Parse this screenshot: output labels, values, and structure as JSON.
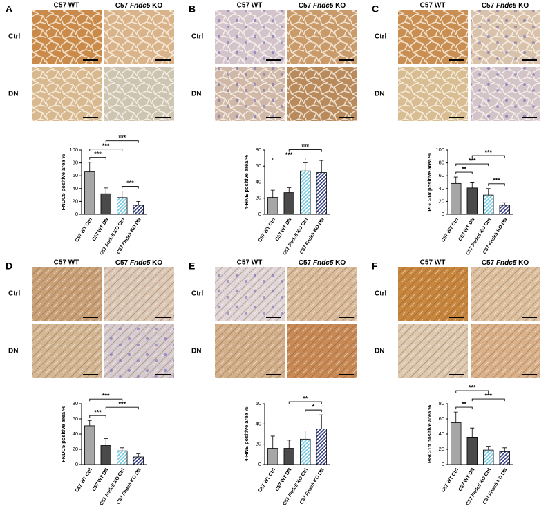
{
  "panels": [
    {
      "letter": "A",
      "col_headers": [
        "C57 WT",
        "C57 Fndc5 KO"
      ],
      "row_labels": [
        "Ctrl",
        "DN"
      ]
    },
    {
      "letter": "B",
      "col_headers": [
        "C57 WT",
        "C57 Fndc5 KO"
      ],
      "row_labels": [
        "Ctrl",
        "DN"
      ]
    },
    {
      "letter": "C",
      "col_headers": [
        "C57 WT",
        "C57 Fndc5 KO"
      ],
      "row_labels": [
        "Ctrl",
        "DN"
      ]
    },
    {
      "letter": "D",
      "col_headers": [
        "C57 WT",
        "C57 Fndc5 KO"
      ],
      "row_labels": [
        "Ctrl",
        "DN"
      ]
    },
    {
      "letter": "E",
      "col_headers": [
        "C57 WT",
        "C57 Fndc5 KO"
      ],
      "row_labels": [
        "Ctrl",
        "DN"
      ]
    },
    {
      "letter": "F",
      "col_headers": [
        "C57 WT",
        "C57 Fndc5 KO"
      ],
      "row_labels": [
        "Ctrl",
        "DN"
      ]
    }
  ],
  "chart_data": [
    {
      "type": "bar",
      "y_label": "FNDC5 positive area %",
      "categories": [
        "C57 WT Ctrl",
        "C57 WT DN",
        "C57 Fndc5 KO Ctrl",
        "C57 Fndc5 KO DN"
      ],
      "values": [
        66,
        32,
        26,
        14
      ],
      "errors": [
        15,
        9,
        10,
        6
      ],
      "colors": [
        "#a6a6a6",
        "#4a4a4a",
        "#6cc7e0",
        "#2b3580"
      ],
      "hatch": [
        false,
        false,
        true,
        true
      ],
      "ylim": [
        0,
        100
      ],
      "yticks": [
        0,
        20,
        40,
        60,
        80,
        100
      ],
      "grid": false,
      "significance": [
        {
          "pair": [
            0,
            1
          ],
          "label": "***"
        },
        {
          "pair": [
            2,
            3
          ],
          "label": "***"
        },
        {
          "pair": [
            0,
            2
          ],
          "label": "***"
        },
        {
          "pair": [
            1,
            3
          ],
          "label": "***"
        }
      ]
    },
    {
      "type": "bar",
      "y_label": "4-HNE positive area %",
      "categories": [
        "C57 WT Ctrl",
        "C57 WT DN",
        "C57 Fndc5 KO Ctrl",
        "C57 Fndc5 KO DN"
      ],
      "values": [
        21,
        27,
        54,
        52
      ],
      "errors": [
        9,
        6,
        10,
        15
      ],
      "colors": [
        "#a6a6a6",
        "#4a4a4a",
        "#6cc7e0",
        "#2b3580"
      ],
      "hatch": [
        false,
        false,
        true,
        true
      ],
      "ylim": [
        0,
        80
      ],
      "yticks": [
        0,
        20,
        40,
        60,
        80
      ],
      "grid": false,
      "significance": [
        {
          "pair": [
            0,
            2
          ],
          "label": "***"
        },
        {
          "pair": [
            1,
            3
          ],
          "label": "***"
        }
      ]
    },
    {
      "type": "bar",
      "y_label": "PGC-1α positive area %",
      "categories": [
        "C57 WT Ctrl",
        "C57 WT DN",
        "C57 Fndc5 KO Ctrl",
        "C57 Fndc5 KO DN"
      ],
      "values": [
        48,
        41,
        30,
        14
      ],
      "errors": [
        10,
        8,
        10,
        4
      ],
      "colors": [
        "#a6a6a6",
        "#4a4a4a",
        "#6cc7e0",
        "#2b3580"
      ],
      "hatch": [
        false,
        false,
        true,
        true
      ],
      "ylim": [
        0,
        100
      ],
      "yticks": [
        0,
        20,
        40,
        60,
        80,
        100
      ],
      "grid": false,
      "significance": [
        {
          "pair": [
            0,
            1
          ],
          "label": "**"
        },
        {
          "pair": [
            2,
            3
          ],
          "label": "***"
        },
        {
          "pair": [
            0,
            2
          ],
          "label": "***"
        },
        {
          "pair": [
            1,
            3
          ],
          "label": "***"
        }
      ]
    },
    {
      "type": "bar",
      "y_label": "FNDC5 positive area %",
      "categories": [
        "C57 WT Ctrl",
        "C57 WT DN",
        "C57 Fndc5 KO Ctrl",
        "C57 Fndc5 KO DN"
      ],
      "values": [
        51,
        25,
        18,
        10
      ],
      "errors": [
        7,
        9,
        4,
        4
      ],
      "colors": [
        "#a6a6a6",
        "#4a4a4a",
        "#6cc7e0",
        "#2b3580"
      ],
      "hatch": [
        false,
        false,
        true,
        true
      ],
      "ylim": [
        0,
        80
      ],
      "yticks": [
        0,
        20,
        40,
        60,
        80
      ],
      "grid": false,
      "significance": [
        {
          "pair": [
            0,
            1
          ],
          "label": "***"
        },
        {
          "pair": [
            1,
            3
          ],
          "label": "***"
        },
        {
          "pair": [
            0,
            2
          ],
          "label": "***"
        }
      ]
    },
    {
      "type": "bar",
      "y_label": "4-HNE positive area %",
      "categories": [
        "C57 WT Ctrl",
        "C57 WT DN",
        "C57 Fndc5 KO Ctrl",
        "C57 Fndc5 KO DN"
      ],
      "values": [
        16,
        16,
        25,
        35
      ],
      "errors": [
        12,
        8,
        8,
        14
      ],
      "colors": [
        "#a6a6a6",
        "#4a4a4a",
        "#6cc7e0",
        "#2b3580"
      ],
      "hatch": [
        false,
        false,
        true,
        true
      ],
      "ylim": [
        0,
        60
      ],
      "yticks": [
        0,
        20,
        40,
        60
      ],
      "grid": false,
      "significance": [
        {
          "pair": [
            2,
            3
          ],
          "label": "*"
        },
        {
          "pair": [
            1,
            3
          ],
          "label": "**"
        }
      ]
    },
    {
      "type": "bar",
      "y_label": "PGC-1α positive area %",
      "categories": [
        "C57 WT Ctrl",
        "C57 WT DN",
        "C57 Fndc5 KO Ctrl",
        "C57 Fndc5 KO DN"
      ],
      "values": [
        55,
        36,
        19,
        17
      ],
      "errors": [
        14,
        12,
        5,
        5
      ],
      "colors": [
        "#a6a6a6",
        "#4a4a4a",
        "#6cc7e0",
        "#2b3580"
      ],
      "hatch": [
        false,
        false,
        true,
        true
      ],
      "ylim": [
        0,
        80
      ],
      "yticks": [
        0,
        20,
        40,
        60,
        80
      ],
      "grid": false,
      "significance": [
        {
          "pair": [
            0,
            1
          ],
          "label": "**"
        },
        {
          "pair": [
            1,
            3
          ],
          "label": "***"
        },
        {
          "pair": [
            0,
            2
          ],
          "label": "***"
        }
      ]
    }
  ]
}
